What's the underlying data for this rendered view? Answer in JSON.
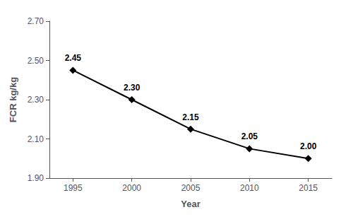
{
  "chart_data": {
    "type": "line",
    "x": [
      1995,
      2000,
      2005,
      2010,
      2015
    ],
    "values": [
      2.45,
      2.3,
      2.15,
      2.05,
      2.0
    ],
    "value_labels": [
      "2.45",
      "2.30",
      "2.15",
      "2.05",
      "2.00"
    ],
    "data_labels": true,
    "xlabel": "Year",
    "ylabel": "FCR kg/kg",
    "xlim": [
      1993,
      2017
    ],
    "ylim": [
      1.9,
      2.7
    ],
    "xticks": [
      1995,
      2000,
      2005,
      2010,
      2015
    ],
    "yticks": [
      {
        "value": 1.9,
        "label": "1.90"
      },
      {
        "value": 2.1,
        "label": "2.10"
      },
      {
        "value": 2.3,
        "label": "2.30"
      },
      {
        "value": 2.5,
        "label": "2.50"
      },
      {
        "value": 2.7,
        "label": "2.70"
      }
    ],
    "color": "#000000",
    "marker": "diamond",
    "grid": false
  }
}
